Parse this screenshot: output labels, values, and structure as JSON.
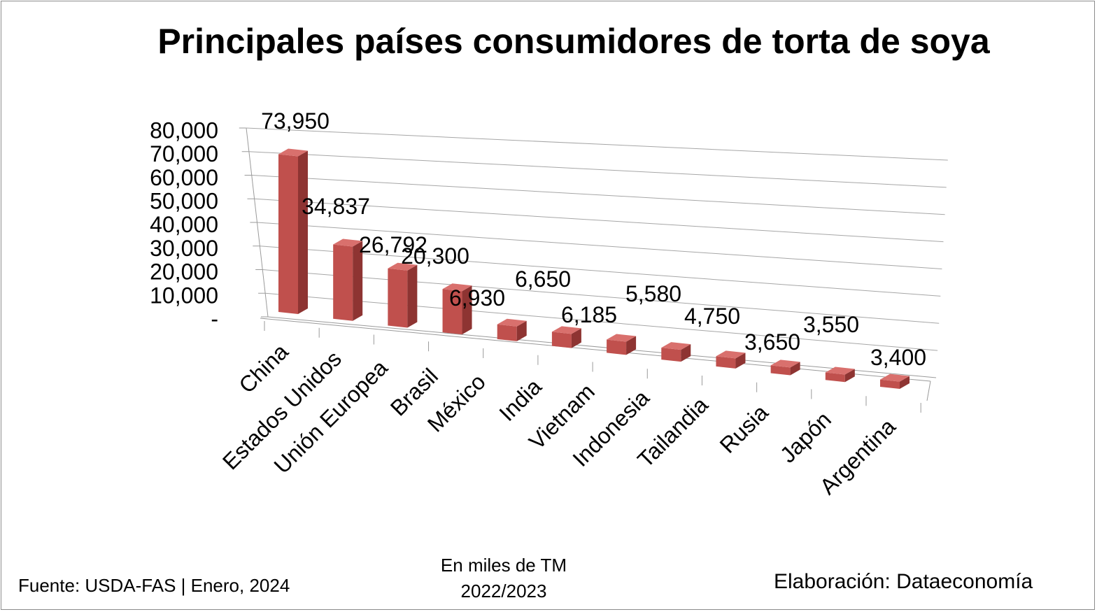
{
  "chart_data": {
    "type": "bar",
    "style": "3d-column",
    "title": "Principales países consumidores de torta de soya",
    "categories": [
      "China",
      "Estados Unidos",
      "Unión Europea",
      "Brasil",
      "México",
      "India",
      "Vietnam",
      "Indonesia",
      "Tailandia",
      "Rusia",
      "Japón",
      "Argentina"
    ],
    "values": [
      73950,
      34837,
      26792,
      20300,
      6930,
      6650,
      6185,
      5580,
      4750,
      3650,
      3550,
      3400
    ],
    "value_labels": [
      "73,950",
      "34,837",
      "26,792",
      "20,300",
      "6,930",
      "6,650",
      "6,185",
      "5,580",
      "4,750",
      "3,650",
      "3,550",
      "3,400"
    ],
    "yticks": [
      "-",
      "10,000",
      "20,000",
      "30,000",
      "40,000",
      "50,000",
      "60,000",
      "70,000",
      "80,000"
    ],
    "ylim": [
      0,
      80000
    ],
    "grid": true,
    "legend": false,
    "bar_color": "#c0504d"
  },
  "notes": {
    "units_line1": "En miles de TM",
    "units_line2": "2022/2023",
    "source": "Fuente:  USDA-FAS | Enero, 2024",
    "credit": "Elaboración: Dataeconomía"
  }
}
